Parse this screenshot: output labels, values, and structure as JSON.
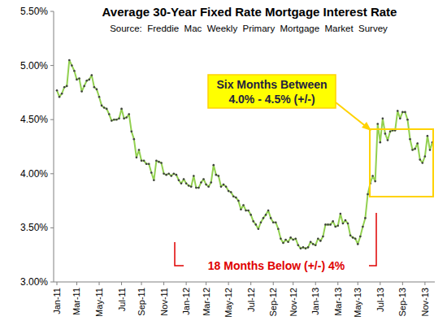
{
  "chart_data": {
    "type": "line",
    "title": "Average 30-Year Fixed Rate Mortgage Interest Rate",
    "subtitle": "Source:  Freddie  Mac  Weekly  Primary  Mortgage  Market  Survey",
    "annotations": [
      "Six Months Between",
      "4.0% - 4.5% (+/-)",
      "18 Months Below (+/-) 4%"
    ],
    "color": "#92d050",
    "marker": "dot",
    "grid": false,
    "ylim": [
      3.0,
      5.5
    ],
    "yticks": [
      {
        "value": 3.0,
        "label": "3.00%"
      },
      {
        "value": 3.5,
        "label": "3.50%"
      },
      {
        "value": 4.0,
        "label": "4.00%"
      },
      {
        "value": 4.5,
        "label": "4.50%"
      },
      {
        "value": 5.0,
        "label": "5.00%"
      },
      {
        "value": 5.5,
        "label": "5.50%"
      }
    ],
    "categories": [
      "Jan-11",
      null,
      null,
      null,
      null,
      null,
      null,
      null,
      "Mar-11",
      null,
      null,
      null,
      null,
      null,
      null,
      null,
      null,
      "May-11",
      null,
      null,
      null,
      null,
      null,
      null,
      null,
      null,
      "Jul-11",
      null,
      null,
      null,
      null,
      null,
      null,
      null,
      "Sep-11",
      null,
      null,
      null,
      null,
      null,
      null,
      null,
      null,
      "Nov-11",
      null,
      null,
      null,
      null,
      null,
      null,
      null,
      null,
      "Jan-12",
      null,
      null,
      null,
      null,
      null,
      null,
      null,
      "Mar-12",
      null,
      null,
      null,
      null,
      null,
      null,
      null,
      null,
      "May-12",
      null,
      null,
      null,
      null,
      null,
      null,
      null,
      null,
      "Jul-12",
      null,
      null,
      null,
      null,
      null,
      null,
      null,
      null,
      "Sep-12",
      null,
      null,
      null,
      null,
      null,
      null,
      null,
      "Nov-12",
      null,
      null,
      null,
      null,
      null,
      null,
      null,
      null,
      "Jan-13",
      null,
      null,
      null,
      null,
      null,
      null,
      null,
      null,
      "Mar-13",
      null,
      null,
      null,
      null,
      null,
      null,
      null,
      "May-13",
      null,
      null,
      null,
      null,
      null,
      null,
      null,
      null,
      "Jul-13",
      null,
      null,
      null,
      null,
      null,
      null,
      null,
      null,
      "Sep-13",
      null,
      null,
      null,
      null,
      null,
      null,
      null,
      null,
      "Nov-13",
      null,
      null,
      null
    ],
    "values": [
      4.77,
      4.71,
      4.74,
      4.8,
      4.81,
      5.05,
      5.0,
      4.95,
      4.87,
      4.88,
      4.76,
      4.81,
      4.86,
      4.87,
      4.91,
      4.8,
      4.78,
      4.71,
      4.63,
      4.61,
      4.6,
      4.55,
      4.49,
      4.5,
      4.5,
      4.51,
      4.6,
      4.51,
      4.52,
      4.55,
      4.39,
      4.32,
      4.15,
      4.22,
      4.12,
      4.12,
      4.09,
      4.09,
      4.01,
      3.94,
      4.12,
      4.11,
      4.1,
      4.0,
      3.99,
      4.0,
      3.98,
      4.0,
      3.99,
      3.94,
      3.91,
      3.95,
      3.91,
      3.89,
      3.88,
      3.98,
      3.87,
      3.87,
      3.92,
      3.95,
      3.9,
      3.88,
      3.92,
      4.08,
      3.99,
      3.98,
      3.88,
      3.9,
      3.88,
      3.84,
      3.83,
      3.79,
      3.78,
      3.75,
      3.67,
      3.71,
      3.66,
      3.66,
      3.62,
      3.56,
      3.53,
      3.49,
      3.55,
      3.59,
      3.62,
      3.66,
      3.59,
      3.55,
      3.55,
      3.49,
      3.4,
      3.36,
      3.39,
      3.37,
      3.41,
      3.39,
      3.4,
      3.34,
      3.31,
      3.32,
      3.31,
      3.32,
      3.37,
      3.35,
      3.34,
      3.4,
      3.38,
      3.42,
      3.53,
      3.53,
      3.53,
      3.56,
      3.51,
      3.52,
      3.63,
      3.54,
      3.57,
      3.54,
      3.43,
      3.41,
      3.4,
      3.35,
      3.42,
      3.51,
      3.59,
      3.81,
      3.91,
      3.98,
      3.93,
      4.46,
      4.29,
      4.51,
      4.37,
      4.31,
      4.39,
      4.4,
      4.4,
      4.58,
      4.51,
      4.57,
      4.57,
      4.5,
      4.32,
      4.22,
      4.23,
      4.28,
      4.13,
      4.1,
      4.16,
      4.35,
      4.22,
      4.29
    ]
  }
}
